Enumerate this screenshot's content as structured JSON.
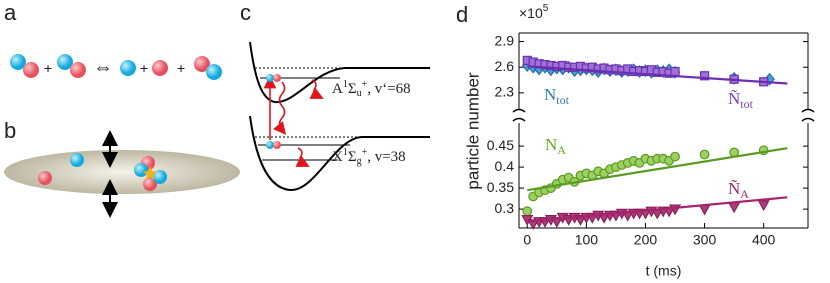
{
  "panel_labels": [
    "a",
    "b",
    "c",
    "d"
  ],
  "panel_a": {
    "symbols": [
      "+",
      "⇔",
      "+",
      "+"
    ]
  },
  "panel_c": {
    "upper_state": [
      "A",
      "1",
      "Σ",
      "u",
      "+",
      ", v‘=68"
    ],
    "lower_state": [
      "X",
      "1",
      "Σ",
      "g",
      "+",
      ", v=38"
    ]
  },
  "chart_data": [
    {
      "type": "scatter",
      "multiplier": [
        "×10",
        "5"
      ],
      "xlim": [
        -14,
        475
      ],
      "ylim": [
        2.1,
        3.0
      ],
      "yticks": [
        2.3,
        2.6,
        2.9
      ],
      "annotations": [
        {
          "base": "N",
          "sub": "tot",
          "color": "#2a7fb5"
        },
        {
          "base": "Ñ",
          "sub": "tot",
          "color": "#7b3fbf"
        }
      ],
      "series": [
        {
          "marker": "diamond",
          "color": "#4aa0d0",
          "stroke": "#1f6fa8",
          "x": [
            0,
            10,
            20,
            30,
            40,
            50,
            60,
            70,
            80,
            90,
            100,
            110,
            120,
            130,
            140,
            150,
            160,
            170,
            180,
            190,
            200,
            210,
            220,
            230,
            240,
            250,
            350,
            410
          ],
          "values": [
            2.62,
            2.6,
            2.58,
            2.6,
            2.57,
            2.59,
            2.58,
            2.6,
            2.56,
            2.57,
            2.58,
            2.57,
            2.55,
            2.58,
            2.56,
            2.57,
            2.55,
            2.56,
            2.57,
            2.55,
            2.56,
            2.54,
            2.56,
            2.55,
            2.57,
            2.54,
            2.47,
            2.46
          ]
        },
        {
          "marker": "square",
          "color": "#a070d8",
          "stroke": "#6a2fb0",
          "x": [
            0,
            10,
            20,
            30,
            40,
            50,
            60,
            70,
            80,
            90,
            100,
            110,
            120,
            130,
            140,
            150,
            160,
            170,
            180,
            190,
            200,
            210,
            220,
            230,
            240,
            250,
            300,
            350,
            400
          ],
          "values": [
            2.68,
            2.66,
            2.64,
            2.63,
            2.62,
            2.61,
            2.62,
            2.6,
            2.6,
            2.61,
            2.59,
            2.6,
            2.58,
            2.59,
            2.57,
            2.58,
            2.56,
            2.58,
            2.55,
            2.56,
            2.55,
            2.57,
            2.54,
            2.55,
            2.53,
            2.55,
            2.5,
            2.46,
            2.43
          ]
        },
        {
          "marker": "line",
          "color": "#6a2fb0",
          "x": [
            0,
            440
          ],
          "values": [
            2.61,
            2.41
          ]
        }
      ]
    },
    {
      "type": "scatter",
      "ylabel": "particle number",
      "xlabel": "t (ms)",
      "xlim": [
        -14,
        475
      ],
      "xticks": [
        0,
        100,
        200,
        300,
        400
      ],
      "ylim": [
        0.255,
        0.505
      ],
      "yticks": [
        0.3,
        0.35,
        0.4,
        0.45
      ],
      "annotations": [
        {
          "base": "N",
          "sub": "A",
          "color": "#6aaa2a"
        },
        {
          "base": "Ñ",
          "sub": "A",
          "color": "#a3256b"
        }
      ],
      "series": [
        {
          "marker": "circle",
          "color": "#9cd060",
          "stroke": "#5a9a20",
          "x": [
            0,
            10,
            20,
            30,
            40,
            50,
            60,
            70,
            80,
            90,
            100,
            110,
            120,
            130,
            140,
            150,
            160,
            170,
            180,
            190,
            200,
            210,
            220,
            230,
            240,
            250,
            300,
            350,
            400
          ],
          "values": [
            0.295,
            0.33,
            0.34,
            0.345,
            0.35,
            0.36,
            0.37,
            0.375,
            0.365,
            0.38,
            0.385,
            0.38,
            0.39,
            0.385,
            0.395,
            0.4,
            0.405,
            0.41,
            0.415,
            0.41,
            0.42,
            0.415,
            0.42,
            0.42,
            0.415,
            0.425,
            0.43,
            0.435,
            0.44
          ]
        },
        {
          "marker": "line",
          "color": "#5a9a20",
          "x": [
            0,
            440
          ],
          "values": [
            0.345,
            0.445
          ]
        },
        {
          "marker": "triangle-down",
          "color": "#b03a7a",
          "stroke": "#8a1f5a",
          "x": [
            0,
            10,
            20,
            30,
            40,
            50,
            60,
            70,
            80,
            90,
            100,
            110,
            120,
            130,
            140,
            150,
            160,
            170,
            180,
            190,
            200,
            210,
            220,
            230,
            240,
            250,
            300,
            350,
            400
          ],
          "values": [
            0.275,
            0.265,
            0.27,
            0.27,
            0.275,
            0.27,
            0.28,
            0.275,
            0.28,
            0.275,
            0.28,
            0.28,
            0.285,
            0.28,
            0.285,
            0.285,
            0.29,
            0.285,
            0.29,
            0.29,
            0.29,
            0.295,
            0.29,
            0.295,
            0.295,
            0.3,
            0.3,
            0.305,
            0.31
          ]
        },
        {
          "marker": "line",
          "color": "#a3256b",
          "x": [
            0,
            440
          ],
          "values": [
            0.27,
            0.328
          ]
        }
      ]
    }
  ]
}
